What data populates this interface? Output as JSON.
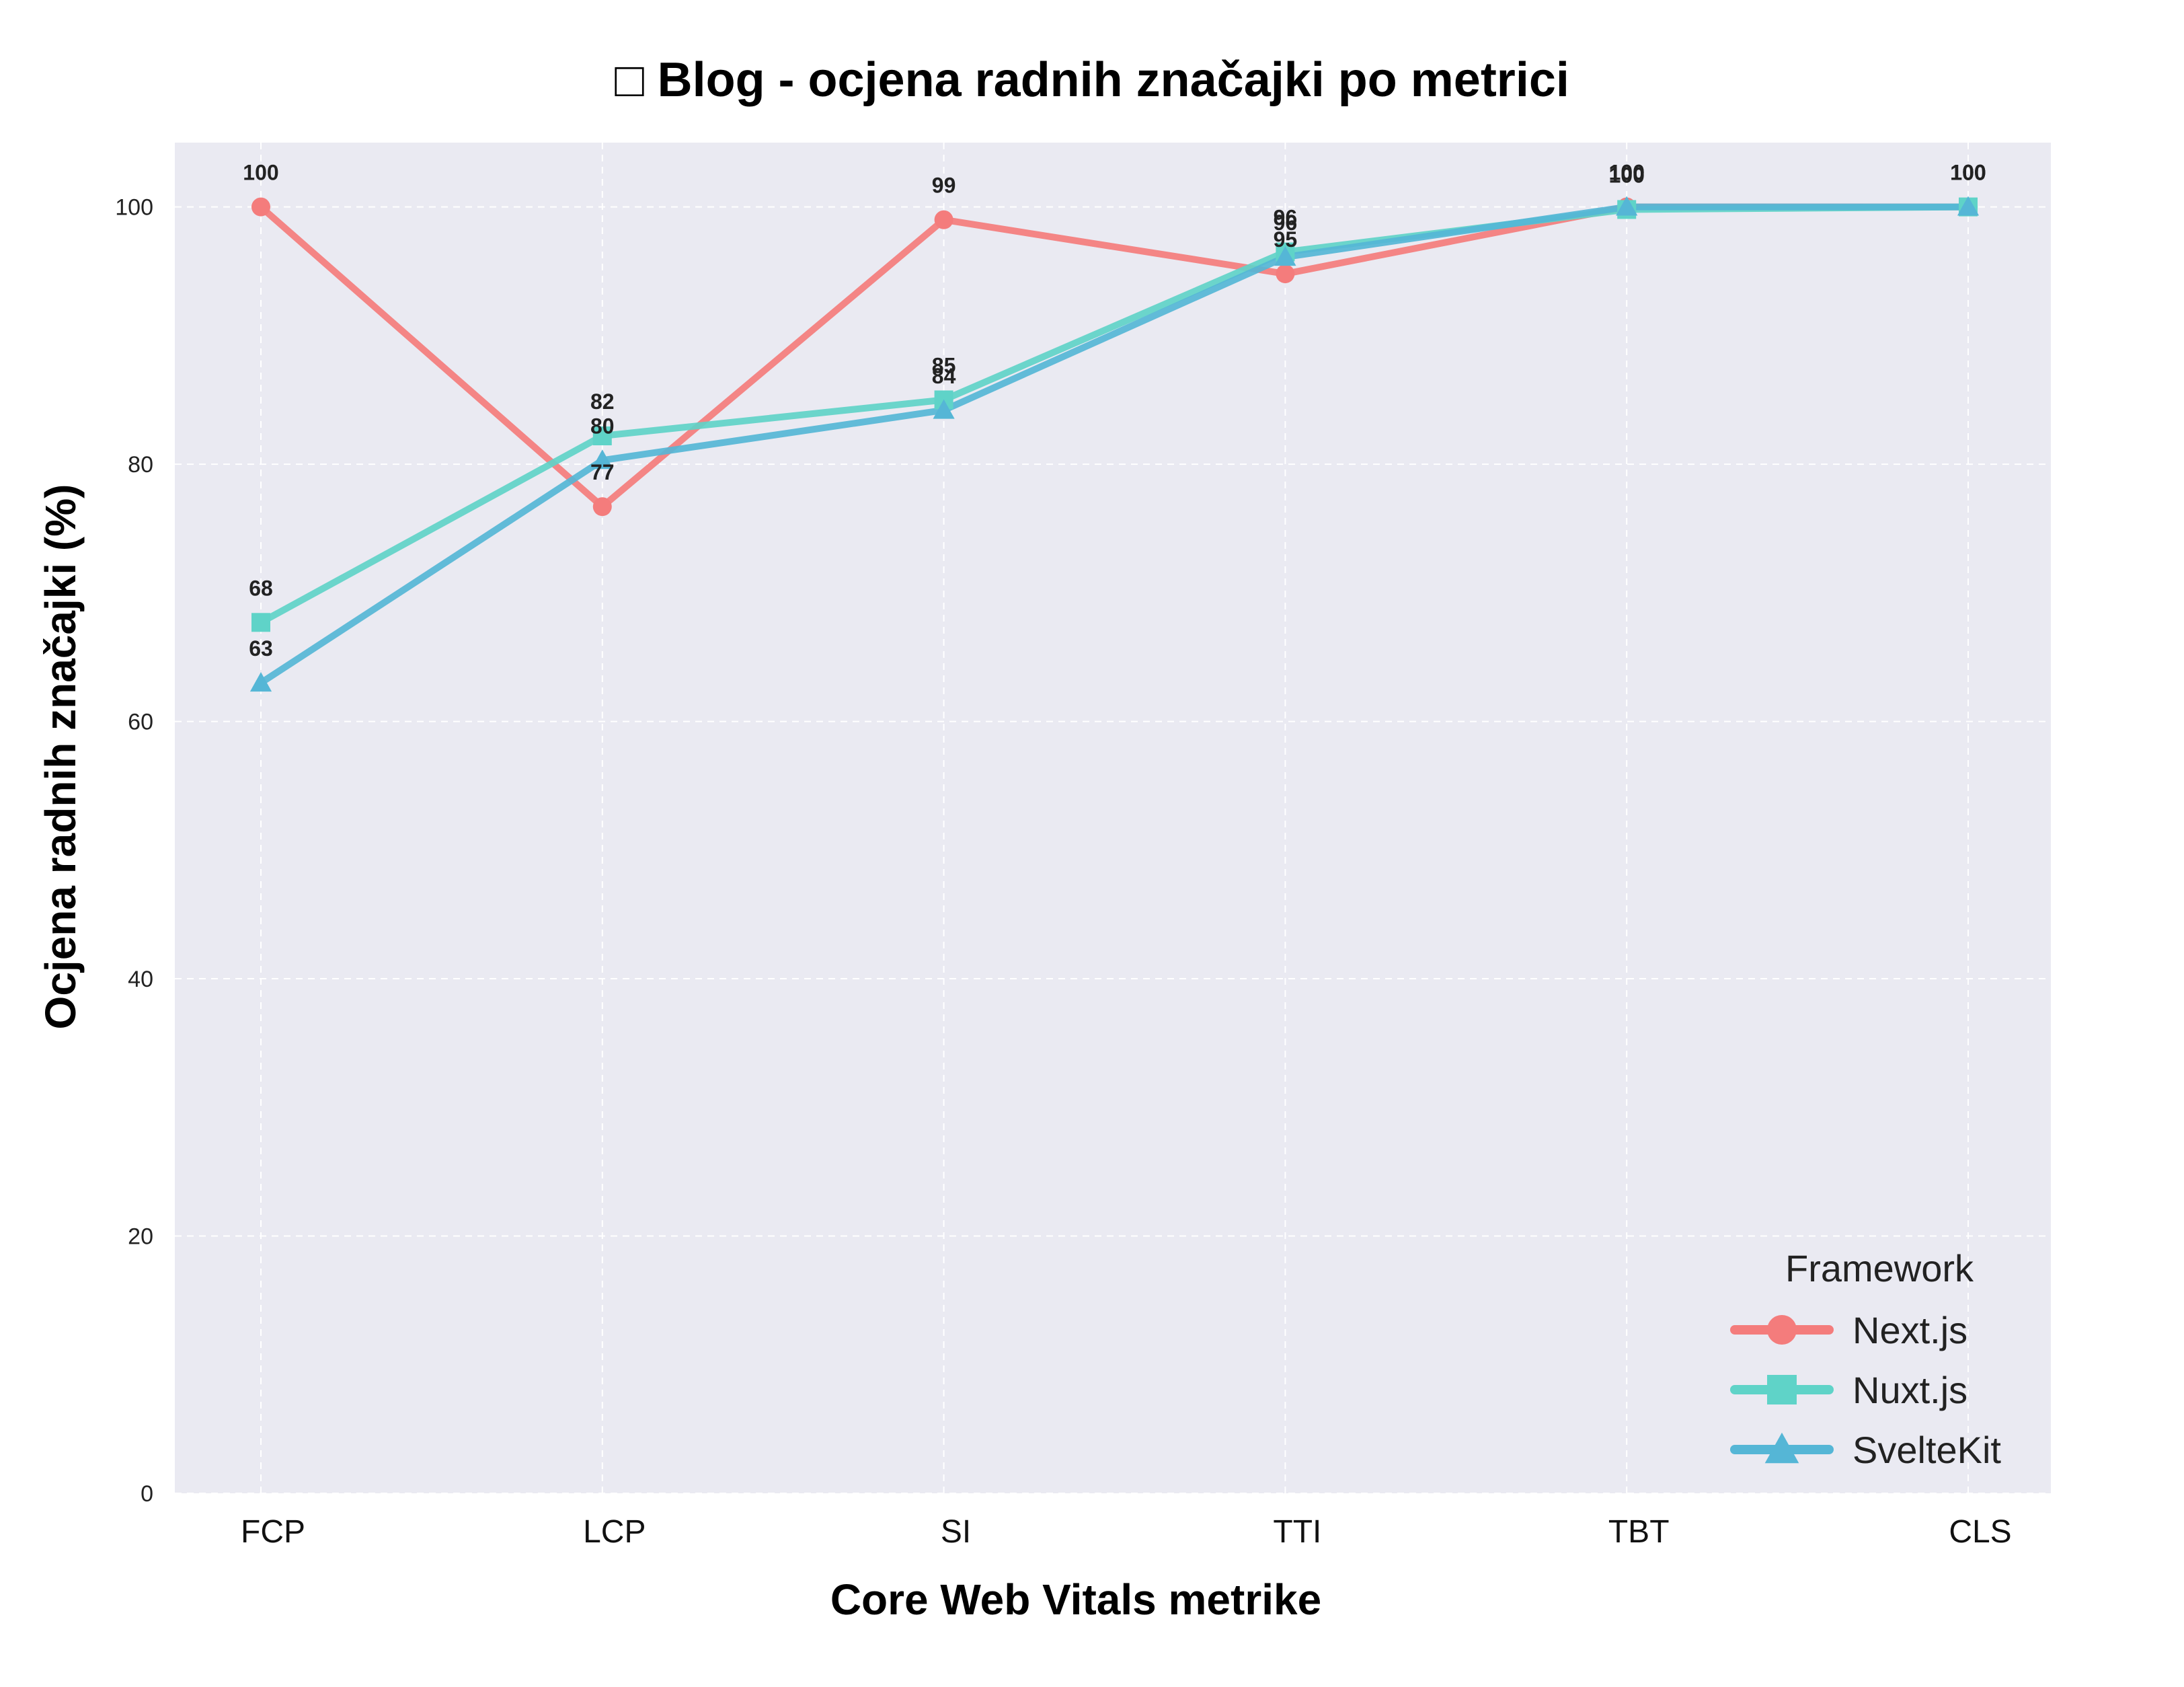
{
  "chart_data": {
    "type": "line",
    "title": "□ Blog - ocjena radnih značajki po metrici",
    "xlabel": "Core Web Vitals metrike",
    "ylabel": "Ocjena radnih značajki (%)",
    "categories": [
      "FCP",
      "LCP",
      "SI",
      "TTI",
      "TBT",
      "CLS"
    ],
    "ylim": [
      0,
      105
    ],
    "yticks": [
      0,
      20,
      40,
      60,
      80,
      100
    ],
    "grid": true,
    "legend_title": "Framework",
    "legend_position": "bottom-right",
    "series": [
      {
        "name": "Next.js",
        "marker": "circle",
        "color": "#F47C7C",
        "values": [
          100,
          76.7,
          99,
          94.8,
          100,
          100
        ],
        "labels": [
          "100",
          "77",
          "99",
          "95",
          "100",
          "100"
        ]
      },
      {
        "name": "Nuxt.js",
        "marker": "square",
        "color": "#5FD3C8",
        "values": [
          67.7,
          82.2,
          85,
          96.5,
          99.8,
          100
        ],
        "labels": [
          "68",
          "82",
          "85",
          "96",
          "100",
          "100"
        ]
      },
      {
        "name": "SvelteKit",
        "marker": "triangle",
        "color": "#55B6D6",
        "values": [
          63,
          80.3,
          84.2,
          96.1,
          100,
          100
        ],
        "labels": [
          "63",
          "80",
          "84",
          "96",
          "100",
          "100"
        ]
      }
    ]
  }
}
